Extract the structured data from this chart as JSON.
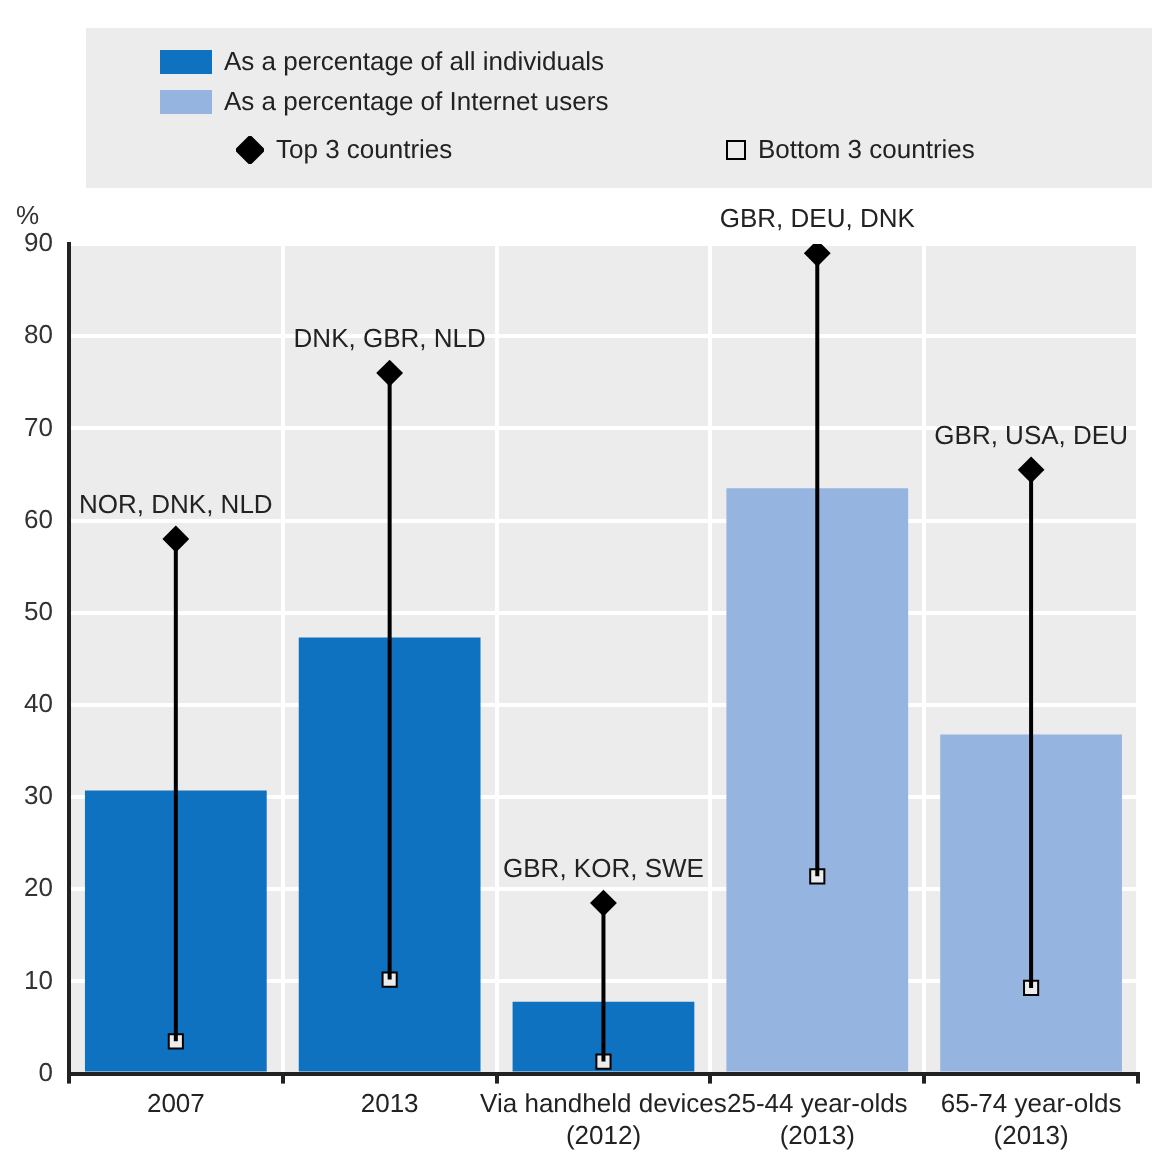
{
  "chart_data": {
    "type": "bar",
    "ylabel": "%",
    "categories": [
      "2007",
      "2013",
      "Via handheld devices (2012)",
      "25-44 year-olds (2013)",
      "65-74 year-olds (2013)"
    ],
    "series": [
      {
        "name": "As a percentage of all individuals",
        "color": "#0e72c0",
        "values": [
          30.7,
          47.3,
          7.8,
          null,
          null
        ]
      },
      {
        "name": "As a percentage of Internet users",
        "color": "#95b4e0",
        "values": [
          null,
          null,
          null,
          63.5,
          36.8
        ]
      },
      {
        "name": "Top 3 countries",
        "type": "scatter",
        "marker": "diamond",
        "color": "#000000",
        "values": [
          58,
          76,
          18.5,
          89,
          65.5
        ]
      },
      {
        "name": "Bottom 3 countries",
        "type": "scatter",
        "marker": "square",
        "color": "#ececec",
        "values": [
          3.5,
          10.2,
          1.3,
          21.4,
          9.3
        ]
      }
    ],
    "annotations": [
      {
        "text": "NOR, DNK, NLD",
        "x": "2007",
        "y": 58
      },
      {
        "text": "DNK, GBR, NLD",
        "x": "2013",
        "y": 76
      },
      {
        "text": "GBR, KOR, SWE",
        "x": "Via handheld devices (2012)",
        "y": 18.5
      },
      {
        "text": "GBR, DEU, DNK",
        "x": "25-44 year-olds (2013)",
        "y": 89
      },
      {
        "text": "GBR, USA, DEU",
        "x": "65-74 year-olds (2013)",
        "y": 65.5
      }
    ],
    "ylim": [
      0,
      90
    ],
    "yticks": [
      0,
      10,
      20,
      30,
      40,
      50,
      60,
      70,
      80,
      90
    ],
    "grid": true,
    "legend": "top"
  }
}
